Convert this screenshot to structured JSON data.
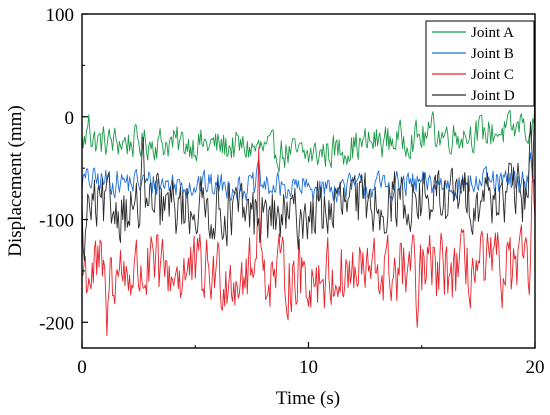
{
  "chart_data": {
    "type": "line",
    "xlabel": "Time (s)",
    "ylabel": "Displacement (mm)",
    "xlim": [
      0,
      20
    ],
    "ylim": [
      -225,
      100
    ],
    "x_ticks": [
      0,
      10,
      20
    ],
    "y_ticks": [
      100,
      0,
      -100,
      -200
    ],
    "x_tick_labels": [
      "0",
      "10",
      "20"
    ],
    "y_tick_labels": [
      "100",
      "0",
      "-100",
      "-200"
    ],
    "grid": false,
    "legend": "top-right",
    "series": [
      {
        "name": "Joint A",
        "color": "#1a9a48",
        "mean": -25,
        "spread": 12,
        "sample_interval": 0.05,
        "trend_points": [
          [
            0,
            -24
          ],
          [
            5,
            -26
          ],
          [
            8,
            -32
          ],
          [
            10,
            -38
          ],
          [
            13,
            -24
          ],
          [
            16,
            -18
          ],
          [
            20,
            -12
          ]
        ],
        "extremes": [
          [
            0.3,
            2
          ],
          [
            15.5,
            5
          ],
          [
            19.4,
            3
          ],
          [
            20,
            -8
          ]
        ]
      },
      {
        "name": "Joint B",
        "color": "#1e6fd8",
        "mean": -65,
        "spread": 10,
        "sample_interval": 0.05,
        "trend_points": [
          [
            0,
            -62
          ],
          [
            5,
            -66
          ],
          [
            10,
            -70
          ],
          [
            15,
            -66
          ],
          [
            20,
            -64
          ]
        ],
        "extremes": [
          [
            7.8,
            -40
          ],
          [
            19.8,
            -35
          ]
        ]
      },
      {
        "name": "Joint C",
        "color": "#e8222a",
        "mean": -150,
        "spread": 26,
        "sample_interval": 0.05,
        "trend_points": [
          [
            0,
            -150
          ],
          [
            5,
            -152
          ],
          [
            10,
            -155
          ],
          [
            15,
            -150
          ],
          [
            20,
            -148
          ]
        ],
        "extremes": [
          [
            1.1,
            -213
          ],
          [
            14.8,
            -205
          ],
          [
            7.8,
            -30
          ],
          [
            19.9,
            -45
          ]
        ]
      },
      {
        "name": "Joint D",
        "color": "#2a2a2a",
        "mean": -85,
        "spread": 22,
        "sample_interval": 0.05,
        "trend_points": [
          [
            0,
            -90
          ],
          [
            5,
            -88
          ],
          [
            9,
            -100
          ],
          [
            12,
            -84
          ],
          [
            16,
            -80
          ],
          [
            20,
            -74
          ]
        ],
        "extremes": [
          [
            0.1,
            -140
          ],
          [
            20,
            27
          ],
          [
            19.8,
            -5
          ],
          [
            2.7,
            -20
          ]
        ]
      }
    ]
  }
}
